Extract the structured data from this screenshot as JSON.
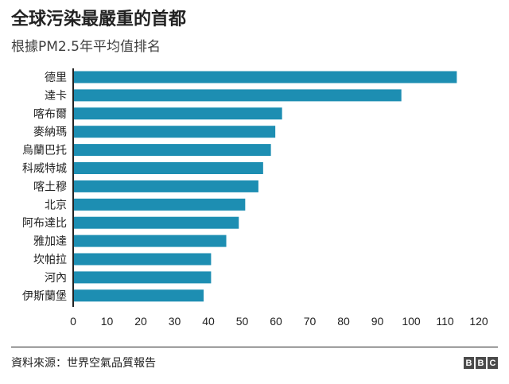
{
  "header": {
    "title": "全球污染最嚴重的首都",
    "subtitle": "根據PM2.5年平均值排名"
  },
  "footer": {
    "source": "資料來源：世界空氣品質報告",
    "logo_letters": [
      "B",
      "B",
      "C"
    ]
  },
  "colors": {
    "bar": "#1d8eb2",
    "axis": "#222222",
    "text": "#222222"
  },
  "chart_data": {
    "type": "bar",
    "orientation": "horizontal",
    "title": "全球污染最嚴重的首都",
    "subtitle": "根據PM2.5年平均值排名",
    "xlabel": "",
    "ylabel": "",
    "xlim": [
      0,
      120
    ],
    "x_ticks": [
      0,
      10,
      20,
      30,
      40,
      50,
      60,
      70,
      80,
      90,
      100,
      110,
      120
    ],
    "grid": false,
    "categories": [
      "德里",
      "達卡",
      "喀布爾",
      "麥納瑪",
      "烏蘭巴托",
      "科威特城",
      "喀土穆",
      "北京",
      "阿布達比",
      "雅加達",
      "坎帕拉",
      "河內",
      "伊斯蘭堡"
    ],
    "values": [
      113.5,
      97.1,
      61.8,
      59.8,
      58.5,
      56.2,
      54.8,
      50.9,
      49.0,
      45.3,
      40.8,
      40.8,
      38.6
    ]
  }
}
